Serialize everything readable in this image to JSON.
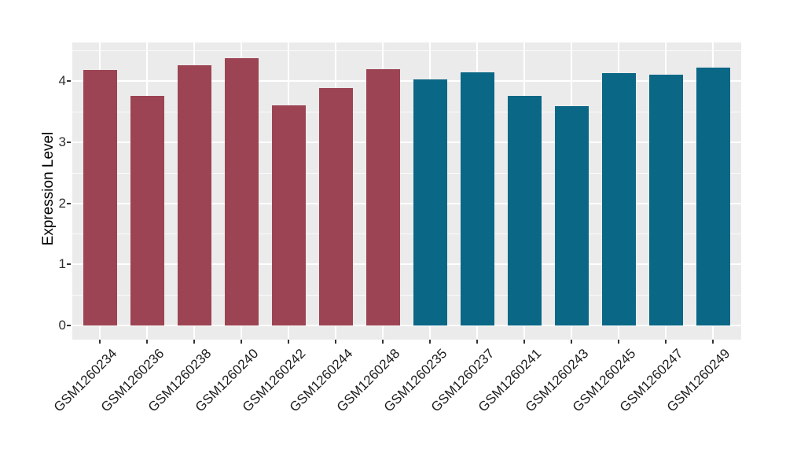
{
  "chart_data": {
    "type": "bar",
    "title": "",
    "xlabel": "",
    "ylabel": "Expression Level",
    "ylim": [
      -0.23,
      4.64
    ],
    "yticks": [
      0,
      1,
      2,
      3,
      4
    ],
    "yticks_minor": [
      0.5,
      1.5,
      2.5,
      3.5,
      4.5
    ],
    "grid": "on",
    "legend": "none",
    "panel_background": "#EBEBEB",
    "grid_color": "#FFFFFF",
    "bars": [
      {
        "label": "GSM1260234",
        "value": 4.18,
        "color": "#9C4453"
      },
      {
        "label": "GSM1260236",
        "value": 3.76,
        "color": "#9C4453"
      },
      {
        "label": "GSM1260238",
        "value": 4.26,
        "color": "#9C4453"
      },
      {
        "label": "GSM1260240",
        "value": 4.37,
        "color": "#9C4453"
      },
      {
        "label": "GSM1260242",
        "value": 3.6,
        "color": "#9C4453"
      },
      {
        "label": "GSM1260244",
        "value": 3.89,
        "color": "#9C4453"
      },
      {
        "label": "GSM1260248",
        "value": 4.19,
        "color": "#9C4453"
      },
      {
        "label": "GSM1260235",
        "value": 4.03,
        "color": "#0A6786"
      },
      {
        "label": "GSM1260237",
        "value": 4.14,
        "color": "#0A6786"
      },
      {
        "label": "GSM1260241",
        "value": 3.76,
        "color": "#0A6786"
      },
      {
        "label": "GSM1260243",
        "value": 3.59,
        "color": "#0A6786"
      },
      {
        "label": "GSM1260245",
        "value": 4.13,
        "color": "#0A6786"
      },
      {
        "label": "GSM1260247",
        "value": 4.1,
        "color": "#0A6786"
      },
      {
        "label": "GSM1260249",
        "value": 4.22,
        "color": "#0A6786"
      }
    ]
  }
}
